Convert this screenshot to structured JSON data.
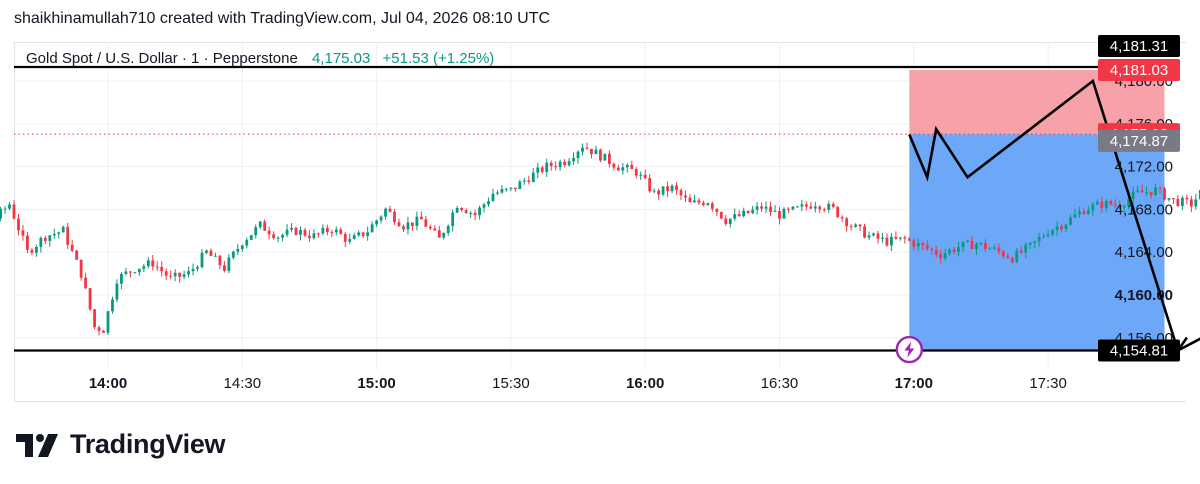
{
  "header": {
    "attribution": "shaikhinamullah710 created with TradingView.com, Jul 04, 2026 08:10 UTC"
  },
  "symbol": {
    "description": "Gold Spot / U.S. Dollar · 1 · Pepperstone",
    "last_price": "4,175.03",
    "change": "+51.53 (+1.25%)"
  },
  "brand": {
    "name": "TradingView",
    "logo_icon": "tradingview-logo-icon"
  },
  "colors": {
    "up": "#089981",
    "down": "#f23645",
    "stop_zone": "#f7a1a8",
    "target_zone": "#6ca8f7",
    "grid": "#eef0f3",
    "price_tag_red": "#f23645",
    "price_tag_gray": "#787b86",
    "price_tag_black": "#000000",
    "marker_purple": "#9c27b0"
  },
  "chart_data": {
    "type": "candlestick",
    "y_axis_ticks": [
      "4,180.00",
      "4,176.00",
      "4,172.00",
      "4,168.00",
      "4,164.00",
      "4,160.00",
      "4,156.00"
    ],
    "y_axis_bold_tick": "4,160.00",
    "x_axis_ticks": [
      {
        "label": "14:00",
        "bold": true
      },
      {
        "label": "14:30",
        "bold": false
      },
      {
        "label": "15:00",
        "bold": true
      },
      {
        "label": "15:30",
        "bold": false
      },
      {
        "label": "16:00",
        "bold": true
      },
      {
        "label": "16:30",
        "bold": false
      },
      {
        "label": "17:00",
        "bold": true
      },
      {
        "label": "17:30",
        "bold": false
      }
    ],
    "ylim": [
      4152.5,
      4183.0
    ],
    "x_range_minutes": [
      795,
      1062
    ],
    "price_path": [
      [
        796,
        4168.2
      ],
      [
        800,
        4167.5
      ],
      [
        803,
        4168.0
      ],
      [
        806,
        4164.5
      ],
      [
        810,
        4166.5
      ],
      [
        814,
        4166.8
      ],
      [
        818,
        4168.5
      ],
      [
        822,
        4164.0
      ],
      [
        826,
        4165.5
      ],
      [
        830,
        4166.0
      ],
      [
        834,
        4162.0
      ],
      [
        837,
        4157.0
      ],
      [
        839,
        4156.8
      ],
      [
        842,
        4161.5
      ],
      [
        846,
        4162.5
      ],
      [
        850,
        4163.0
      ],
      [
        854,
        4161.5
      ],
      [
        858,
        4162.0
      ],
      [
        862,
        4164.0
      ],
      [
        866,
        4162.5
      ],
      [
        870,
        4165.0
      ],
      [
        874,
        4166.5
      ],
      [
        878,
        4165.5
      ],
      [
        882,
        4166.0
      ],
      [
        886,
        4165.5
      ],
      [
        890,
        4166.2
      ],
      [
        894,
        4165.0
      ],
      [
        898,
        4166.0
      ],
      [
        902,
        4168.0
      ],
      [
        906,
        4166.5
      ],
      [
        910,
        4167.0
      ],
      [
        914,
        4165.2
      ],
      [
        918,
        4168.5
      ],
      [
        922,
        4167.5
      ],
      [
        926,
        4169.5
      ],
      [
        930,
        4169.8
      ],
      [
        934,
        4171.0
      ],
      [
        938,
        4172.0
      ],
      [
        942,
        4172.5
      ],
      [
        946,
        4174.0
      ],
      [
        950,
        4173.0
      ],
      [
        954,
        4172.0
      ],
      [
        958,
        4171.5
      ],
      [
        962,
        4169.5
      ],
      [
        966,
        4170.0
      ],
      [
        970,
        4168.5
      ],
      [
        974,
        4168.8
      ],
      [
        978,
        4167.0
      ],
      [
        982,
        4167.5
      ],
      [
        986,
        4168.2
      ],
      [
        990,
        4167.5
      ],
      [
        994,
        4168.0
      ],
      [
        998,
        4168.6
      ],
      [
        1002,
        4168.0
      ],
      [
        1006,
        4166.5
      ],
      [
        1010,
        4165.5
      ],
      [
        1014,
        4165.0
      ],
      [
        1018,
        4165.2
      ],
      [
        1022,
        4164.5
      ],
      [
        1026,
        4163.8
      ],
      [
        1030,
        4164.5
      ],
      [
        1034,
        4164.8
      ],
      [
        1038,
        4164.2
      ],
      [
        1042,
        4163.5
      ],
      [
        1046,
        4164.5
      ],
      [
        1050,
        4166.0
      ],
      [
        1054,
        4166.8
      ],
      [
        1058,
        4168.0
      ],
      [
        1062,
        4168.5
      ],
      [
        1066,
        4168.5
      ],
      [
        1070,
        4169.5
      ],
      [
        1074,
        4169.8
      ],
      [
        1078,
        4168.8
      ],
      [
        1082,
        4168.5
      ],
      [
        1086,
        4170.5
      ],
      [
        1090,
        4171.8
      ],
      [
        1094,
        4171.0
      ],
      [
        1098,
        4172.5
      ],
      [
        1102,
        4174.5
      ],
      [
        1106,
        4176.5
      ],
      [
        1110,
        4175.0
      ],
      [
        1112,
        4175.03
      ]
    ],
    "price_levels": [
      {
        "label": "4,181.31",
        "value": 4181.31,
        "style": "black-line"
      },
      {
        "label": "4,181.03",
        "value": 4181.03,
        "style": "red-tag"
      },
      {
        "label": "4,175.03",
        "value": 4175.03,
        "style": "red-tag-dotted"
      },
      {
        "label": "4,174.87",
        "value": 4174.87,
        "style": "gray-tag"
      },
      {
        "label": "4,154.81",
        "value": 4154.81,
        "style": "black-line"
      }
    ],
    "position_tool": {
      "type": "short",
      "start_minute": 1019,
      "end_minute": 1076,
      "entry": 4175.03,
      "stop": 4181.03,
      "target": 4154.81
    },
    "projection_path": [
      [
        1019,
        4175.0
      ],
      [
        1023,
        4171.0
      ],
      [
        1025,
        4175.5
      ],
      [
        1032,
        4171.0
      ],
      [
        1060,
        4180.0
      ],
      [
        1079,
        4154.81
      ],
      [
        1088,
        4156.8
      ]
    ],
    "marker_icon": "lightning-icon"
  }
}
